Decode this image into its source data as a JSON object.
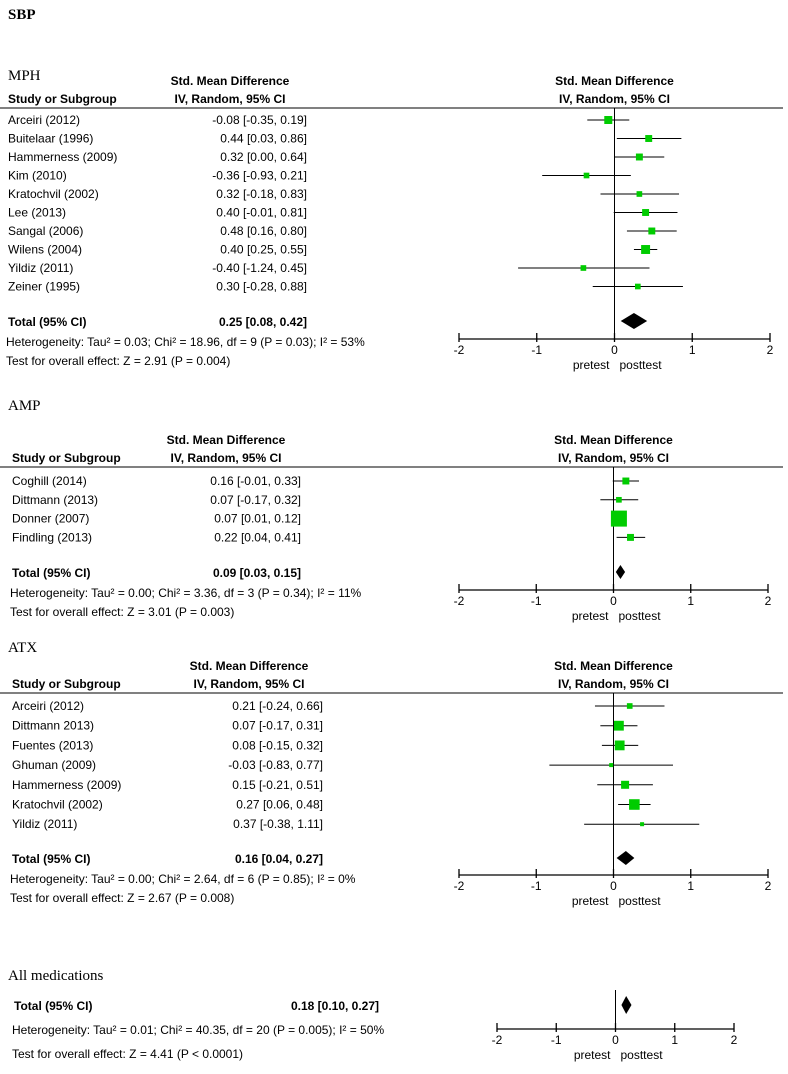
{
  "title": "SBP",
  "colors": {
    "marker": "#00cc00",
    "line": "#000000",
    "diamond": "#000000"
  },
  "chart_data": {
    "type": "forest",
    "effect_header": "Std. Mean Difference",
    "method_header": "IV, Random, 95% CI",
    "study_header": "Study or Subgroup",
    "xlim": [
      -2,
      2
    ],
    "xticks": [
      "-2",
      "-1",
      "0",
      "1",
      "2"
    ],
    "favours_left": "pretest",
    "favours_right": "posttest",
    "panels": [
      {
        "title": "MPH",
        "studies": [
          {
            "name": "Arceiri (2012)",
            "est": -0.08,
            "lo": -0.35,
            "hi": 0.19,
            "label": "-0.08 [-0.35, 0.19]",
            "weight": 4
          },
          {
            "name": "Buitelaar (1996)",
            "est": 0.44,
            "lo": 0.03,
            "hi": 0.86,
            "label": "0.44 [0.03, 0.86]",
            "weight": 3
          },
          {
            "name": "Hammerness (2009)",
            "est": 0.32,
            "lo": 0.0,
            "hi": 0.64,
            "label": "0.32 [0.00, 0.64]",
            "weight": 3
          },
          {
            "name": "Kim (2010)",
            "est": -0.36,
            "lo": -0.93,
            "hi": 0.21,
            "label": "-0.36 [-0.93, 0.21]",
            "weight": 2
          },
          {
            "name": "Kratochvil (2002)",
            "est": 0.32,
            "lo": -0.18,
            "hi": 0.83,
            "label": "0.32 [-0.18, 0.83]",
            "weight": 2
          },
          {
            "name": "Lee (2013)",
            "est": 0.4,
            "lo": -0.01,
            "hi": 0.81,
            "label": "0.40 [-0.01, 0.81]",
            "weight": 3
          },
          {
            "name": "Sangal (2006)",
            "est": 0.48,
            "lo": 0.16,
            "hi": 0.8,
            "label": "0.48 [0.16, 0.80]",
            "weight": 3
          },
          {
            "name": "Wilens (2004)",
            "est": 0.4,
            "lo": 0.25,
            "hi": 0.55,
            "label": "0.40 [0.25, 0.55]",
            "weight": 5
          },
          {
            "name": "Yildiz (2011)",
            "est": -0.4,
            "lo": -1.24,
            "hi": 0.45,
            "label": "-0.40 [-1.24, 0.45]",
            "weight": 2
          },
          {
            "name": "Zeiner (1995)",
            "est": 0.3,
            "lo": -0.28,
            "hi": 0.88,
            "label": "0.30 [-0.28, 0.88]",
            "weight": 2
          }
        ],
        "total": {
          "name": "Total (95% CI)",
          "est": 0.25,
          "lo": 0.08,
          "hi": 0.42,
          "label": "0.25 [0.08, 0.42]"
        },
        "heterogeneity": "Heterogeneity: Tau² = 0.03; Chi² = 18.96, df = 9 (P = 0.03); I² = 53%",
        "overall": "Test for overall effect: Z = 2.91 (P = 0.004)"
      },
      {
        "title": "AMP",
        "studies": [
          {
            "name": "Coghill (2014)",
            "est": 0.16,
            "lo": -0.01,
            "hi": 0.33,
            "label": "0.16 [-0.01, 0.33]",
            "weight": 3
          },
          {
            "name": "Dittmann (2013)",
            "est": 0.07,
            "lo": -0.17,
            "hi": 0.32,
            "label": "0.07 [-0.17, 0.32]",
            "weight": 2
          },
          {
            "name": "Donner (2007)",
            "est": 0.07,
            "lo": 0.01,
            "hi": 0.12,
            "label": "0.07 [0.01, 0.12]",
            "weight": 16
          },
          {
            "name": "Findling (2013)",
            "est": 0.22,
            "lo": 0.04,
            "hi": 0.41,
            "label": "0.22 [0.04, 0.41]",
            "weight": 3
          }
        ],
        "total": {
          "name": "Total (95% CI)",
          "est": 0.09,
          "lo": 0.03,
          "hi": 0.15,
          "label": "0.09 [0.03, 0.15]"
        },
        "heterogeneity": "Heterogeneity: Tau² = 0.00; Chi² = 3.36, df = 3 (P = 0.34); I² = 11%",
        "overall": "Test for overall effect: Z = 3.01 (P = 0.003)"
      },
      {
        "title": "ATX",
        "studies": [
          {
            "name": "Arceiri  (2012)",
            "est": 0.21,
            "lo": -0.24,
            "hi": 0.66,
            "label": "0.21 [-0.24, 0.66]",
            "weight": 2
          },
          {
            "name": "Dittmann 2013)",
            "est": 0.07,
            "lo": -0.17,
            "hi": 0.31,
            "label": "0.07 [-0.17, 0.31]",
            "weight": 6
          },
          {
            "name": "Fuentes (2013)",
            "est": 0.08,
            "lo": -0.15,
            "hi": 0.32,
            "label": "0.08 [-0.15, 0.32]",
            "weight": 6
          },
          {
            "name": "Ghuman (2009)",
            "est": -0.03,
            "lo": -0.83,
            "hi": 0.77,
            "label": "-0.03 [-0.83, 0.77]",
            "weight": 1
          },
          {
            "name": "Hammerness  (2009)",
            "est": 0.15,
            "lo": -0.21,
            "hi": 0.51,
            "label": "0.15 [-0.21, 0.51]",
            "weight": 4
          },
          {
            "name": "Kratochvil  (2002)",
            "est": 0.27,
            "lo": 0.06,
            "hi": 0.48,
            "label": "0.27 [0.06, 0.48]",
            "weight": 7
          },
          {
            "name": "Yildiz  (2011)",
            "est": 0.37,
            "lo": -0.38,
            "hi": 1.11,
            "label": "0.37 [-0.38, 1.11]",
            "weight": 1
          }
        ],
        "total": {
          "name": "Total (95% CI)",
          "est": 0.16,
          "lo": 0.04,
          "hi": 0.27,
          "label": "0.16 [0.04, 0.27]"
        },
        "heterogeneity": "Heterogeneity: Tau² = 0.00; Chi² = 2.64, df = 6 (P = 0.85); I² = 0%",
        "overall": "Test for overall effect: Z = 2.67 (P = 0.008)"
      },
      {
        "title": "All medications",
        "studies": [],
        "total": {
          "name": "Total (95% CI)",
          "est": 0.18,
          "lo": 0.1,
          "hi": 0.27,
          "label": "0.18 [0.10, 0.27]"
        },
        "heterogeneity": "Heterogeneity: Tau² = 0.01; Chi² = 40.35, df = 20 (P = 0.005); I² = 50%",
        "overall": "Test for overall effect: Z = 4.41 (P < 0.0001)"
      }
    ]
  }
}
